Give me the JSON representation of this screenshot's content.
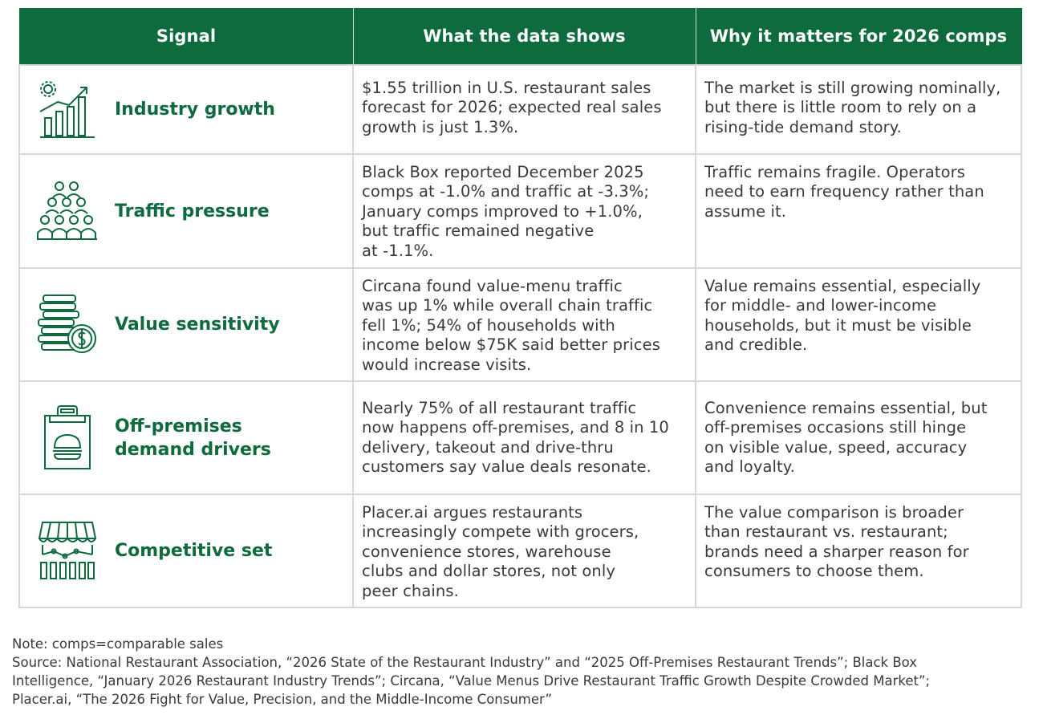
{
  "table": {
    "headers": [
      "Signal",
      "What the data shows",
      "Why it matters for 2026 comps"
    ],
    "rows": [
      {
        "icon": "growth-chart-icon",
        "signal": "Industry growth",
        "data_lines": [
          "$1.55 trillion in U.S. restaurant sales",
          "forecast for 2026; expected real sales",
          "growth is just 1.3%."
        ],
        "why_lines": [
          "The market is still growing nominally,",
          "but there is little room to rely on a",
          "rising-tide demand story."
        ]
      },
      {
        "icon": "people-crowd-icon",
        "signal": "Traffic pressure",
        "data_lines": [
          "Black Box reported December 2025",
          "comps at -1.0% and traffic at -3.3%;",
          "January comps improved to +1.0%,",
          "but traffic remained negative",
          "at -1.1%."
        ],
        "why_lines": [
          "Traffic remains fragile. Operators",
          "need to earn frequency rather than",
          "assume it."
        ]
      },
      {
        "icon": "coin-stack-icon",
        "signal": "Value sensitivity",
        "data_lines": [
          "Circana found value-menu traffic",
          "was up 1% while overall chain traffic",
          "fell 1%; 54% of households with",
          "income below $75K said better prices",
          "would increase visits."
        ],
        "why_lines": [
          "Value remains essential, especially",
          "for middle- and lower-income",
          "households, but it must be visible",
          "and credible."
        ]
      },
      {
        "icon": "takeout-bag-icon",
        "signal_lines": [
          "Off-premises",
          "demand drivers"
        ],
        "data_lines": [
          "Nearly 75% of all restaurant traffic",
          "now happens off-premises, and 8 in 10",
          "delivery, takeout and drive-thru",
          "customers say value deals resonate."
        ],
        "why_lines": [
          "Convenience remains essential, but",
          "off-premises occasions still hinge",
          "on visible value, speed, accuracy",
          "and loyalty."
        ]
      },
      {
        "icon": "storefront-icon",
        "signal": "Competitive set",
        "data_lines": [
          "Placer.ai argues restaurants",
          "increasingly compete with grocers,",
          "convenience stores, warehouse",
          "clubs and dollar stores, not only",
          "peer chains."
        ],
        "why_lines": [
          "The value comparison is broader",
          "than restaurant vs. restaurant;",
          "brands need a sharper reason for",
          "consumers to choose them."
        ]
      }
    ]
  },
  "footer": {
    "note": "Note: comps=comparable sales",
    "source_lines": [
      "Source: National Restaurant Association, “2026 State of the Restaurant Industry” and “2025 Off-Premises Restaurant Trends”; Black Box",
      "Intelligence, “January 2026 Restaurant Industry Trends”; Circana, “Value Menus Drive Restaurant Traffic Growth Despite Crowded Market”;",
      "Placer.ai, “The 2026 Fight for Value, Precision, and the Middle-Income Consumer”"
    ]
  },
  "colors": {
    "brand_green": "#0e6b3e",
    "border_gray": "#d6d6d6",
    "text": "#3a3a3a"
  }
}
